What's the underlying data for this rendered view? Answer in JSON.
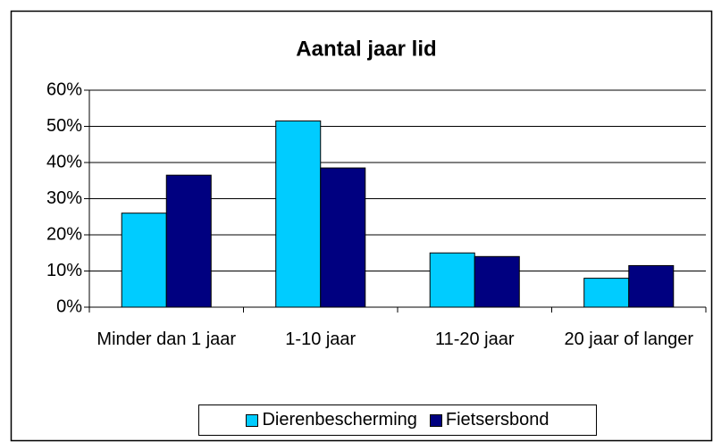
{
  "chart_data": {
    "type": "bar",
    "title": "Aantal jaar lid",
    "categories": [
      "Minder dan 1 jaar",
      "1-10 jaar",
      "11-20 jaar",
      "20 jaar of langer"
    ],
    "series": [
      {
        "name": "Dierenbescherming",
        "color": "#00ccff",
        "values": [
          26,
          51.5,
          15,
          8
        ]
      },
      {
        "name": "Fietsersbond",
        "color": "#000080",
        "values": [
          36.5,
          38.5,
          14,
          11.5
        ]
      }
    ],
    "ylim": [
      0,
      60
    ],
    "yticks": [
      {
        "value": 0,
        "label": "0%"
      },
      {
        "value": 10,
        "label": "10%"
      },
      {
        "value": 20,
        "label": "20%"
      },
      {
        "value": 30,
        "label": "30%"
      },
      {
        "value": 40,
        "label": "40%"
      },
      {
        "value": 50,
        "label": "50%"
      },
      {
        "value": 60,
        "label": "60%"
      }
    ],
    "grid": true,
    "legend": "bottom"
  }
}
